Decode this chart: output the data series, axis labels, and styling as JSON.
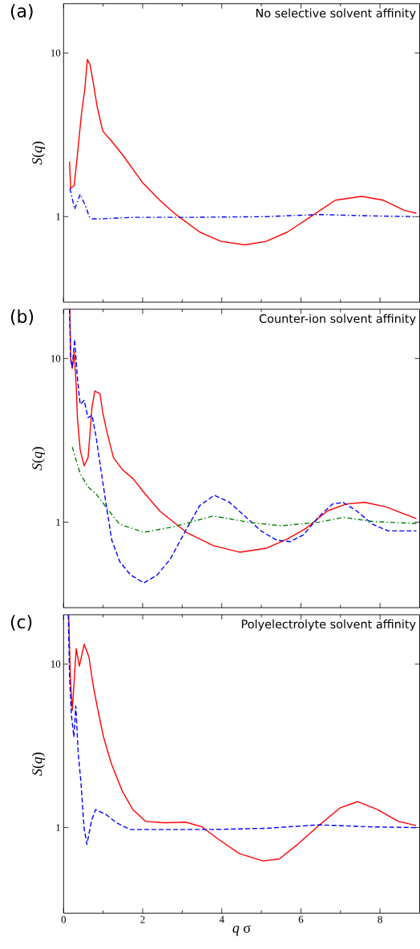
{
  "chart_data": [
    {
      "type": "line",
      "title": "No selective solvent affinity",
      "annotations": [
        "(a)"
      ],
      "ylabel": "*S*(*q*)",
      "xlim": [
        0,
        9
      ],
      "ylim": [
        0.3,
        20
      ],
      "log": "y",
      "tick_labels": "y",
      "xticks": [
        0,
        {
          "value": 1,
          "label": null
        },
        2,
        {
          "value": 3,
          "label": null
        },
        4,
        {
          "value": 5,
          "label": null
        },
        6,
        {
          "value": 7,
          "label": null
        },
        8
      ],
      "yticks": [
        1,
        10
      ],
      "series": [
        {
          "color": "#ff0000",
          "line_style": "solid",
          "x": [
            0.15,
            0.18,
            0.27,
            0.35,
            0.45,
            0.54,
            0.6,
            0.67,
            0.75,
            0.85,
            0.99,
            1.22,
            1.49,
            2.0,
            2.43,
            2.84,
            3.44,
            3.98,
            4.58,
            5.12,
            5.66,
            6.33,
            6.87,
            7.54,
            8.08,
            8.62,
            8.92
          ],
          "values": [
            2.17,
            1.49,
            1.55,
            2.39,
            4.19,
            6.1,
            9.14,
            8.5,
            6.6,
            4.69,
            3.34,
            2.88,
            2.39,
            1.61,
            1.26,
            1.03,
            0.805,
            0.706,
            0.672,
            0.706,
            0.805,
            1.03,
            1.26,
            1.33,
            1.26,
            1.09,
            1.05
          ]
        },
        {
          "color": "#0000ff",
          "line_style": "dashdot",
          "x": [
            0.16,
            0.22,
            0.28,
            0.42,
            0.55,
            0.65,
            0.72,
            0.95,
            1.76,
            3.1,
            5.12,
            6.47,
            7.81,
            8.92
          ],
          "values": [
            1.49,
            1.29,
            1.11,
            1.37,
            1.17,
            1.0,
            0.97,
            0.97,
            0.99,
            0.99,
            1.0,
            1.03,
            1.01,
            1.0
          ]
        }
      ]
    },
    {
      "type": "line",
      "title": "Counter-ion solvent affinity",
      "annotations": [
        "(b)"
      ],
      "ylabel": "*S*(*q*)",
      "xlim": [
        0,
        9
      ],
      "ylim": [
        0.3,
        20
      ],
      "log": "y",
      "tick_labels": "y",
      "xticks": [
        0,
        {
          "value": 1,
          "label": null
        },
        2,
        {
          "value": 3,
          "label": null
        },
        4,
        {
          "value": 5,
          "label": null
        },
        6,
        {
          "value": 7,
          "label": null
        },
        8
      ],
      "yticks": [
        1,
        10
      ],
      "series": [
        {
          "color": "#ff0000",
          "line_style": "solid",
          "x": [
            0.16,
            0.18,
            0.22,
            0.27,
            0.32,
            0.35,
            0.42,
            0.52,
            0.62,
            0.72,
            0.79,
            0.92,
            0.99,
            1.09,
            1.26,
            1.49,
            1.76,
            2.03,
            2.43,
            3.1,
            3.78,
            4.45,
            5.12,
            5.66,
            6.13,
            6.67,
            7.14,
            7.61,
            8.15,
            8.92
          ],
          "values": [
            20,
            9.9,
            8.7,
            10.9,
            6.8,
            4.35,
            2.77,
            2.21,
            2.48,
            5.06,
            6.33,
            6.1,
            4.69,
            3.61,
            2.48,
            2.09,
            1.84,
            1.52,
            1.17,
            0.867,
            0.719,
            0.655,
            0.692,
            0.79,
            0.917,
            1.17,
            1.29,
            1.32,
            1.24,
            1.05
          ]
        },
        {
          "color": "#0000ff",
          "line_style": "dashed",
          "x": [
            0.15,
            0.18,
            0.22,
            0.28,
            0.35,
            0.42,
            0.52,
            0.62,
            0.72,
            0.82,
            0.95,
            1.09,
            1.22,
            1.42,
            1.69,
            2.03,
            2.37,
            2.7,
            3.1,
            3.44,
            3.81,
            4.18,
            4.58,
            4.99,
            5.39,
            5.73,
            6.06,
            6.47,
            6.8,
            7.07,
            7.41,
            7.81,
            8.21,
            8.92
          ],
          "values": [
            20,
            9.9,
            8.9,
            13.1,
            7.6,
            5.25,
            5.55,
            4.35,
            4.5,
            3.34,
            2.05,
            1.22,
            0.775,
            0.574,
            0.476,
            0.425,
            0.476,
            0.596,
            0.9,
            1.26,
            1.46,
            1.33,
            1.09,
            0.884,
            0.775,
            0.76,
            0.835,
            1.09,
            1.29,
            1.32,
            1.17,
            0.97,
            0.884,
            0.884
          ]
        },
        {
          "color": "#008000",
          "line_style": "dashdot",
          "x": [
            0.22,
            0.42,
            0.62,
            0.82,
            1.09,
            1.42,
            2.03,
            2.77,
            3.78,
            4.78,
            5.52,
            6.47,
            7.07,
            7.81,
            8.92
          ],
          "values": [
            2.88,
            1.98,
            1.64,
            1.49,
            1.22,
            0.97,
            0.867,
            0.935,
            1.09,
            0.99,
            0.95,
            1.0,
            1.07,
            1.01,
            0.98
          ]
        }
      ]
    },
    {
      "type": "line",
      "title": "Polyelectrolyte solvent affinity",
      "annotations": [
        "(c)"
      ],
      "ylabel": "*S*(*q*)",
      "xlabel": "*q* σ",
      "xlim": [
        0,
        9
      ],
      "ylim": [
        0.3,
        20
      ],
      "log": "y",
      "xticks": [
        0,
        {
          "value": 1,
          "label": null
        },
        2,
        {
          "value": 3,
          "label": null
        },
        4,
        {
          "value": 5,
          "label": null
        },
        6,
        {
          "value": 7,
          "label": null
        },
        8
      ],
      "yticks": [
        1,
        10
      ],
      "series": [
        {
          "color": "#ff0000",
          "line_style": "solid",
          "x": [
            0.13,
            0.17,
            0.22,
            0.32,
            0.4,
            0.52,
            0.64,
            0.74,
            0.87,
            1.01,
            1.21,
            1.48,
            1.75,
            2.08,
            2.55,
            3.09,
            3.5,
            3.9,
            4.44,
            5.04,
            5.45,
            5.92,
            6.45,
            6.99,
            7.43,
            7.93,
            8.47,
            8.91
          ],
          "values": [
            20,
            8.5,
            5.2,
            12.4,
            9.7,
            13.2,
            11.1,
            7.6,
            5.2,
            3.58,
            2.45,
            1.68,
            1.29,
            1.09,
            1.07,
            1.08,
            1.01,
            0.854,
            0.694,
            0.626,
            0.643,
            0.791,
            1.03,
            1.32,
            1.44,
            1.29,
            1.09,
            1.03
          ]
        },
        {
          "color": "#0000ff",
          "line_style": "dashed",
          "x": [
            0.12,
            0.15,
            0.2,
            0.26,
            0.31,
            0.37,
            0.44,
            0.52,
            0.59,
            0.71,
            0.81,
            1.08,
            1.34,
            1.68,
            2.42,
            3.76,
            5.11,
            6.45,
            7.8,
            8.91
          ],
          "values": [
            20,
            8.5,
            4.84,
            3.58,
            5.53,
            2.86,
            1.88,
            0.99,
            0.791,
            1.11,
            1.29,
            1.2,
            1.07,
            0.974,
            0.974,
            0.974,
            0.99,
            1.04,
            1.01,
            1.0
          ]
        }
      ]
    }
  ]
}
